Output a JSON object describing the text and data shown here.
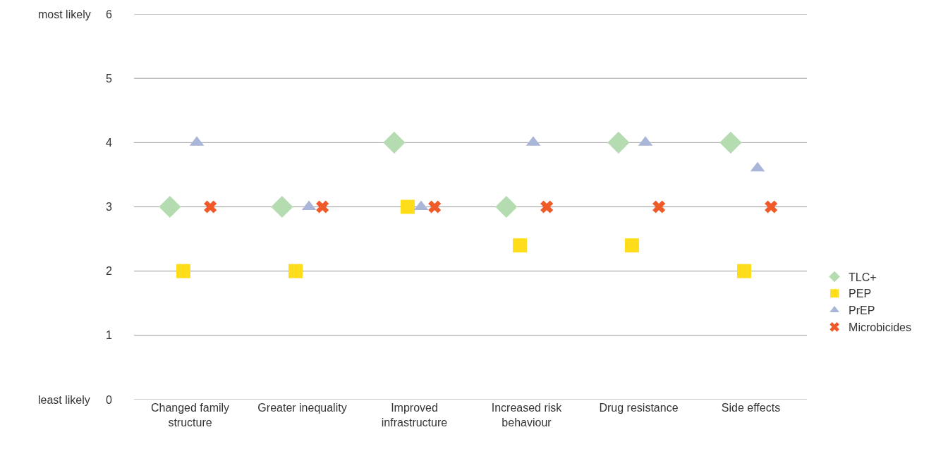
{
  "chart_data": {
    "type": "scatter",
    "categories": [
      "Changed family structure",
      "Greater inequality",
      "Improved infrastructure",
      "Increased risk behaviour",
      "Drug resistance",
      "Side effects"
    ],
    "series": [
      {
        "name": "TLC+",
        "color": "#b5dbb0",
        "marker": "diamond",
        "values": [
          3,
          3,
          4,
          3,
          4,
          4
        ]
      },
      {
        "name": "PEP",
        "color": "#ffdd1a",
        "marker": "square",
        "values": [
          2,
          2,
          3,
          2.4,
          2.4,
          2
        ]
      },
      {
        "name": "PrEP",
        "color": "#a9b6d8",
        "marker": "triangle",
        "values": [
          4,
          3,
          3,
          4,
          4,
          3.6
        ]
      },
      {
        "name": "Microbicides",
        "color": "#f05a28",
        "marker": "cross",
        "values": [
          3,
          3,
          3,
          3,
          3,
          3
        ]
      }
    ],
    "ylim": [
      0,
      6
    ],
    "yticks": [
      0,
      1,
      2,
      3,
      4,
      5,
      6
    ],
    "grid": "y",
    "legend": "right",
    "annotations": [
      "most likely",
      "least likely"
    ]
  }
}
